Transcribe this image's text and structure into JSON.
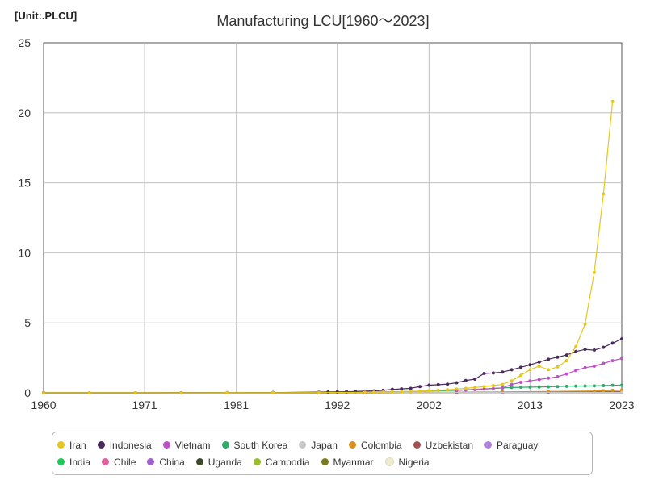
{
  "header": {
    "unit": "[Unit:.PLCU]",
    "title": "Manufacturing LCU[1960～2023]"
  },
  "chart_data": {
    "type": "line",
    "title": "Manufacturing LCU[1960～2023]",
    "xlabel": "",
    "ylabel": "[Unit:.PLCU]",
    "xlim": [
      1960,
      2023
    ],
    "ylim": [
      0,
      25
    ],
    "x_ticks": [
      "1960",
      "1971",
      "1981",
      "1992",
      "2002",
      "2013",
      "2023"
    ],
    "y_ticks": [
      "0",
      "5",
      "10",
      "15",
      "20",
      "25"
    ],
    "grid": true,
    "legend_position": "bottom",
    "series": [
      {
        "name": "Iran",
        "color": "#e6c619",
        "x": [
          1960,
          1965,
          1970,
          1975,
          1980,
          1985,
          1990,
          1995,
          1996,
          1997,
          1998,
          1999,
          2000,
          2001,
          2002,
          2003,
          2004,
          2005,
          2006,
          2007,
          2008,
          2009,
          2010,
          2011,
          2012,
          2013,
          2014,
          2015,
          2016,
          2017,
          2018,
          2019,
          2020,
          2021,
          2022
        ],
        "values": [
          0.001,
          0.001,
          0.001,
          0.002,
          0.004,
          0.008,
          0.02,
          0.04,
          0.05,
          0.06,
          0.07,
          0.08,
          0.1,
          0.12,
          0.15,
          0.18,
          0.22,
          0.27,
          0.32,
          0.38,
          0.45,
          0.52,
          0.6,
          0.85,
          1.25,
          1.65,
          1.9,
          1.65,
          1.85,
          2.3,
          3.3,
          4.9,
          8.6,
          14.2,
          20.8
        ]
      },
      {
        "name": "Indonesia",
        "color": "#4b2a5e",
        "x": [
          1960,
          1965,
          1970,
          1975,
          1980,
          1985,
          1990,
          1991,
          1992,
          1993,
          1994,
          1995,
          1996,
          1997,
          1998,
          1999,
          2000,
          2001,
          2002,
          2003,
          2004,
          2005,
          2006,
          2007,
          2008,
          2009,
          2010,
          2011,
          2012,
          2013,
          2014,
          2015,
          2016,
          2017,
          2018,
          2019,
          2020,
          2021,
          2022,
          2023
        ],
        "values": [
          0.0005,
          0.001,
          0.002,
          0.004,
          0.01,
          0.02,
          0.05,
          0.06,
          0.07,
          0.08,
          0.1,
          0.12,
          0.14,
          0.18,
          0.25,
          0.28,
          0.32,
          0.45,
          0.55,
          0.58,
          0.62,
          0.72,
          0.88,
          0.98,
          1.38,
          1.42,
          1.48,
          1.65,
          1.82,
          2.0,
          2.2,
          2.4,
          2.55,
          2.7,
          2.95,
          3.1,
          3.05,
          3.25,
          3.55,
          3.85
        ]
      },
      {
        "name": "Vietnam",
        "color": "#c050c8",
        "x": [
          2005,
          2006,
          2007,
          2008,
          2009,
          2010,
          2011,
          2012,
          2013,
          2014,
          2015,
          2016,
          2017,
          2018,
          2019,
          2020,
          2021,
          2022,
          2023
        ],
        "values": [
          0.18,
          0.2,
          0.23,
          0.27,
          0.3,
          0.36,
          0.6,
          0.75,
          0.85,
          0.95,
          1.05,
          1.15,
          1.35,
          1.6,
          1.8,
          1.9,
          2.1,
          2.3,
          2.45
        ]
      },
      {
        "name": "South Korea",
        "color": "#2eaa6a",
        "x": [
          1960,
          1970,
          1980,
          1990,
          1995,
          2000,
          2005,
          2010,
          2011,
          2012,
          2013,
          2014,
          2015,
          2016,
          2017,
          2018,
          2019,
          2020,
          2021,
          2022,
          2023
        ],
        "values": [
          0.0,
          0.0,
          0.005,
          0.02,
          0.06,
          0.1,
          0.18,
          0.35,
          0.38,
          0.4,
          0.41,
          0.42,
          0.43,
          0.45,
          0.47,
          0.48,
          0.49,
          0.5,
          0.52,
          0.54,
          0.55
        ]
      },
      {
        "name": "Japan",
        "color": "#c8c8c8",
        "x": [
          1960,
          1980,
          2000,
          2023
        ],
        "values": [
          0.0,
          0.01,
          0.02,
          0.03
        ]
      },
      {
        "name": "Colombia",
        "color": "#d8901e",
        "x": [
          1960,
          1980,
          2000,
          2010,
          2015,
          2020,
          2021,
          2022,
          2023
        ],
        "values": [
          0.0,
          0.005,
          0.03,
          0.07,
          0.1,
          0.13,
          0.15,
          0.18,
          0.2
        ]
      },
      {
        "name": "Uzbekistan",
        "color": "#a05050",
        "x": [
          1995,
          2005,
          2015,
          2020,
          2023
        ],
        "values": [
          0.0,
          0.01,
          0.04,
          0.08,
          0.1
        ]
      },
      {
        "name": "Paraguay",
        "color": "#b080e0",
        "x": [
          1960,
          1990,
          2010,
          2023
        ],
        "values": [
          0.0,
          0.005,
          0.03,
          0.06
        ]
      },
      {
        "name": "India",
        "color": "#1ec85a",
        "x": [
          1960,
          1990,
          2010,
          2023
        ],
        "values": [
          0.0,
          0.005,
          0.02,
          0.04
        ]
      },
      {
        "name": "Chile",
        "color": "#e060a0",
        "x": [
          1960,
          1990,
          2010,
          2023
        ],
        "values": [
          0.0,
          0.003,
          0.01,
          0.02
        ]
      },
      {
        "name": "China",
        "color": "#a060d0",
        "x": [
          1960,
          1990,
          2010,
          2023
        ],
        "values": [
          0.0,
          0.002,
          0.01,
          0.015
        ]
      },
      {
        "name": "Uganda",
        "color": "#3c4a2a",
        "x": [
          1960,
          1990,
          2010,
          2023
        ],
        "values": [
          0.0,
          0.002,
          0.008,
          0.012
        ]
      },
      {
        "name": "Cambodia",
        "color": "#9abe28",
        "x": [
          1990,
          2010,
          2023
        ],
        "values": [
          0.0,
          0.005,
          0.01
        ]
      },
      {
        "name": "Myanmar",
        "color": "#7a7a1a",
        "x": [
          1960,
          1990,
          2010,
          2023
        ],
        "values": [
          0.0,
          0.001,
          0.004,
          0.008
        ]
      },
      {
        "name": "Nigeria",
        "color": "#f0ecd0",
        "x": [
          1960,
          1990,
          2010,
          2023
        ],
        "values": [
          0.0,
          0.001,
          0.003,
          0.005
        ]
      }
    ]
  }
}
